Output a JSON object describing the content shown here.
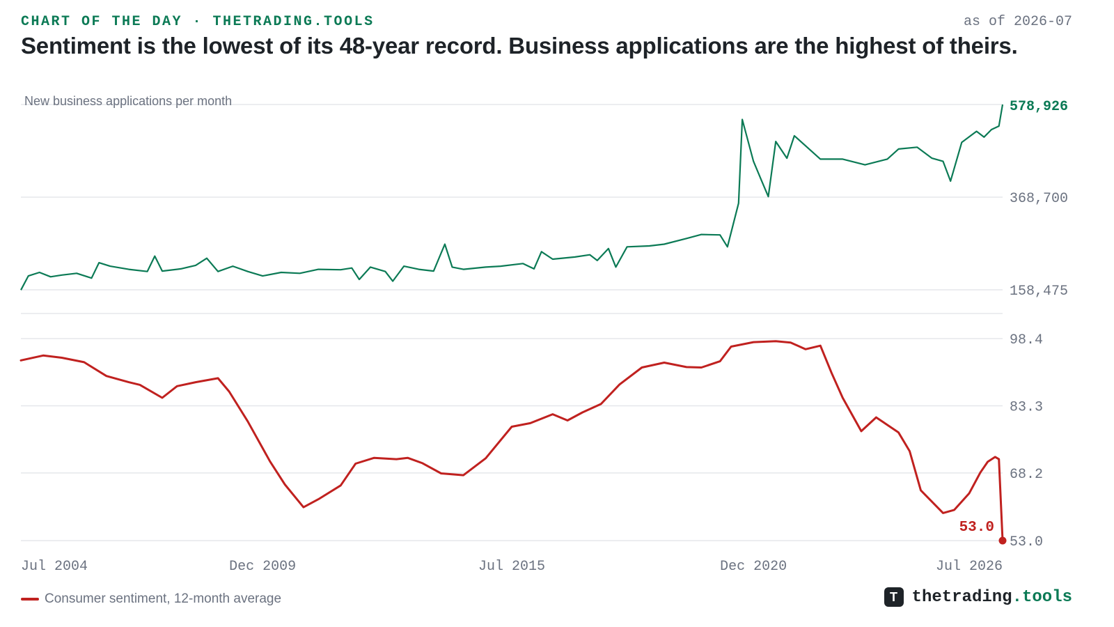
{
  "header": {
    "kicker": "CHART OF THE DAY · THETRADING.TOOLS",
    "as_of": "as of 2026-07",
    "headline": "Sentiment is the lowest of its 48-year record. Business applications are the highest of theirs."
  },
  "legend": {
    "label": "Consumer sentiment, 12-month average"
  },
  "brand": {
    "logo_glyph": "T",
    "name": "thetrading",
    "tld": ".tools"
  },
  "colors": {
    "green": "#0b7a55",
    "red": "#c0211f",
    "grid": "#e5e7eb",
    "tick": "#6b7280"
  },
  "chart_data": [
    {
      "type": "line",
      "panel_label": "New business applications per month",
      "xlim": [
        "2004-07",
        "2026-07"
      ],
      "ylim": [
        158475,
        578926
      ],
      "ytick_labels": [
        "578,926",
        "368,700",
        "158,475"
      ],
      "ytick_values": [
        578926,
        368700,
        158475
      ],
      "end_label": "578,926",
      "series": [
        {
          "points": [
            [
              "2004-07",
              158000
            ],
            [
              "2004-09",
              190000
            ],
            [
              "2004-12",
              198000
            ],
            [
              "2005-03",
              188000
            ],
            [
              "2005-06",
              192000
            ],
            [
              "2005-10",
              196000
            ],
            [
              "2006-02",
              185000
            ],
            [
              "2006-04",
              220000
            ],
            [
              "2006-07",
              212000
            ],
            [
              "2006-12",
              205000
            ],
            [
              "2007-05",
              200000
            ],
            [
              "2007-07",
              235000
            ],
            [
              "2007-09",
              201000
            ],
            [
              "2008-02",
              206000
            ],
            [
              "2008-06",
              214000
            ],
            [
              "2008-09",
              230000
            ],
            [
              "2008-12",
              200000
            ],
            [
              "2009-04",
              212000
            ],
            [
              "2009-08",
              200000
            ],
            [
              "2009-12",
              190000
            ],
            [
              "2010-05",
              198000
            ],
            [
              "2010-10",
              196000
            ],
            [
              "2011-03",
              205000
            ],
            [
              "2011-09",
              204000
            ],
            [
              "2011-12",
              208000
            ],
            [
              "2012-02",
              182000
            ],
            [
              "2012-05",
              210000
            ],
            [
              "2012-09",
              200000
            ],
            [
              "2012-11",
              178000
            ],
            [
              "2013-02",
              212000
            ],
            [
              "2013-06",
              205000
            ],
            [
              "2013-10",
              201000
            ],
            [
              "2014-01",
              262000
            ],
            [
              "2014-03",
              210000
            ],
            [
              "2014-06",
              205000
            ],
            [
              "2014-12",
              210000
            ],
            [
              "2015-04",
              212000
            ],
            [
              "2015-10",
              218000
            ],
            [
              "2016-01",
              206000
            ],
            [
              "2016-03",
              245000
            ],
            [
              "2016-06",
              228000
            ],
            [
              "2016-12",
              233000
            ],
            [
              "2017-04",
              238000
            ],
            [
              "2017-06",
              225000
            ],
            [
              "2017-09",
              252000
            ],
            [
              "2017-11",
              210000
            ],
            [
              "2018-02",
              256000
            ],
            [
              "2018-08",
              258000
            ],
            [
              "2018-12",
              262000
            ],
            [
              "2019-06",
              275000
            ],
            [
              "2019-10",
              284000
            ],
            [
              "2020-03",
              283000
            ],
            [
              "2020-05",
              256000
            ],
            [
              "2020-08",
              355000
            ],
            [
              "2020-09",
              545000
            ],
            [
              "2020-12",
              450000
            ],
            [
              "2021-02",
              410000
            ],
            [
              "2021-04",
              370000
            ],
            [
              "2021-06",
              495000
            ],
            [
              "2021-09",
              457000
            ],
            [
              "2021-11",
              508000
            ],
            [
              "2022-06",
              455000
            ],
            [
              "2022-12",
              455000
            ],
            [
              "2023-06",
              442000
            ],
            [
              "2023-12",
              455000
            ],
            [
              "2024-03",
              478000
            ],
            [
              "2024-08",
              482000
            ],
            [
              "2024-12",
              457000
            ],
            [
              "2025-03",
              450000
            ],
            [
              "2025-05",
              405000
            ],
            [
              "2025-08",
              493000
            ],
            [
              "2025-12",
              518000
            ],
            [
              "2026-02",
              505000
            ],
            [
              "2026-04",
              522000
            ],
            [
              "2026-06",
              530000
            ],
            [
              "2026-07",
              578926
            ]
          ]
        }
      ]
    },
    {
      "type": "line",
      "xlim": [
        "2004-07",
        "2026-07"
      ],
      "ylim": [
        53.0,
        98.4
      ],
      "ytick_labels": [
        "98.4",
        "83.3",
        "68.2",
        "53.0"
      ],
      "ytick_values": [
        98.4,
        83.3,
        68.2,
        53.0
      ],
      "xtick_labels": [
        "Jul 2004",
        "Dec 2009",
        "Jul 2015",
        "Dec 2020",
        "Jul 2026"
      ],
      "xtick_values": [
        "2004-07",
        "2009-12",
        "2015-07",
        "2020-12",
        "2026-07"
      ],
      "end_label": "53.0",
      "series": [
        {
          "name": "Consumer sentiment, 12-month average",
          "points": [
            [
              "2004-07",
              93.5
            ],
            [
              "2005-01",
              94.6
            ],
            [
              "2005-06",
              94.1
            ],
            [
              "2005-12",
              93.1
            ],
            [
              "2006-06",
              90.0
            ],
            [
              "2006-12",
              88.6
            ],
            [
              "2007-03",
              88.0
            ],
            [
              "2007-09",
              85.1
            ],
            [
              "2008-01",
              87.7
            ],
            [
              "2008-06",
              88.6
            ],
            [
              "2008-12",
              89.5
            ],
            [
              "2009-03",
              86.5
            ],
            [
              "2009-08",
              79.8
            ],
            [
              "2010-02",
              70.8
            ],
            [
              "2010-06",
              65.6
            ],
            [
              "2010-11",
              60.5
            ],
            [
              "2011-03",
              62.3
            ],
            [
              "2011-09",
              65.4
            ],
            [
              "2012-01",
              70.3
            ],
            [
              "2012-06",
              71.6
            ],
            [
              "2012-12",
              71.3
            ],
            [
              "2013-03",
              71.6
            ],
            [
              "2013-07",
              70.4
            ],
            [
              "2013-12",
              68.1
            ],
            [
              "2014-06",
              67.7
            ],
            [
              "2014-12",
              71.5
            ],
            [
              "2015-07",
              78.6
            ],
            [
              "2015-12",
              79.4
            ],
            [
              "2016-06",
              81.4
            ],
            [
              "2016-10",
              80.0
            ],
            [
              "2017-02",
              81.8
            ],
            [
              "2017-07",
              83.7
            ],
            [
              "2017-12",
              88.1
            ],
            [
              "2018-06",
              91.9
            ],
            [
              "2018-12",
              93.0
            ],
            [
              "2019-06",
              92.0
            ],
            [
              "2019-10",
              91.9
            ],
            [
              "2020-03",
              93.3
            ],
            [
              "2020-06",
              96.6
            ],
            [
              "2020-12",
              97.6
            ],
            [
              "2021-06",
              97.8
            ],
            [
              "2021-10",
              97.5
            ],
            [
              "2022-02",
              96.0
            ],
            [
              "2022-06",
              96.8
            ],
            [
              "2022-09",
              90.7
            ],
            [
              "2022-12",
              85.1
            ],
            [
              "2023-05",
              77.6
            ],
            [
              "2023-09",
              80.7
            ],
            [
              "2024-03",
              77.3
            ],
            [
              "2024-06",
              73.1
            ],
            [
              "2024-09",
              64.3
            ],
            [
              "2025-03",
              59.2
            ],
            [
              "2025-06",
              59.9
            ],
            [
              "2025-10",
              63.6
            ],
            [
              "2026-01",
              68.3
            ],
            [
              "2026-03",
              70.7
            ],
            [
              "2026-05",
              71.8
            ],
            [
              "2026-06",
              71.3
            ],
            [
              "2026-07",
              53.0
            ]
          ]
        }
      ]
    }
  ]
}
